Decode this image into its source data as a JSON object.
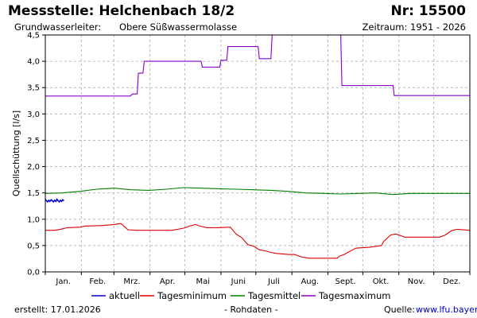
{
  "header": {
    "title": "Messstelle: Helchenbach 18/2",
    "number": "Nr: 15500",
    "aquifer_label": "Grundwasserleiter:",
    "aquifer_value": "Obere Süßwassermolasse",
    "period": "Zeitraum: 1951 - 2026"
  },
  "footer": {
    "created": "erstellt:  17.01.2026",
    "data_note": "- Rohdaten -",
    "source_label": "Quelle:",
    "source_link": "www.lfu.bayern.de"
  },
  "colors": {
    "aktuell": "#0000cc",
    "min": "#dd0000",
    "mittel": "#008000",
    "max": "#8800cc",
    "grid": "#bbbbbb"
  },
  "chart_data": {
    "type": "line",
    "ylabel": "Quellschüttung [l/s]",
    "ylim": [
      0,
      4.5
    ],
    "yticks": [
      "0,0",
      "0,5",
      "1,0",
      "1,5",
      "2,0",
      "2,5",
      "3,0",
      "3,5",
      "4,0",
      "4,5"
    ],
    "xlim": [
      1,
      366
    ],
    "x_month_labels": [
      "Jan.",
      "Feb.",
      "Mrz.",
      "Apr.",
      "Mai",
      "Juni",
      "Juli",
      "Aug.",
      "Sept.",
      "Okt.",
      "Nov.",
      "Dez."
    ],
    "grid": true,
    "legend_position": "bottom",
    "series": [
      {
        "name": "aktuell",
        "color_key": "aktuell",
        "points": [
          [
            1,
            1.38
          ],
          [
            2,
            1.35
          ],
          [
            3,
            1.33
          ],
          [
            4,
            1.36
          ],
          [
            5,
            1.34
          ],
          [
            6,
            1.37
          ],
          [
            7,
            1.35
          ],
          [
            8,
            1.33
          ],
          [
            9,
            1.36
          ],
          [
            10,
            1.34
          ],
          [
            11,
            1.38
          ],
          [
            12,
            1.35
          ],
          [
            13,
            1.33
          ],
          [
            14,
            1.36
          ],
          [
            15,
            1.34
          ],
          [
            16,
            1.37
          ],
          [
            17,
            1.35
          ]
        ]
      },
      {
        "name": "Tagesminimum",
        "color_key": "min",
        "points": [
          [
            1,
            0.79
          ],
          [
            9,
            0.79
          ],
          [
            14,
            0.81
          ],
          [
            20,
            0.84
          ],
          [
            31,
            0.85
          ],
          [
            35,
            0.87
          ],
          [
            50,
            0.88
          ],
          [
            60,
            0.9
          ],
          [
            66,
            0.92
          ],
          [
            68,
            0.88
          ],
          [
            72,
            0.8
          ],
          [
            80,
            0.79
          ],
          [
            95,
            0.79
          ],
          [
            110,
            0.79
          ],
          [
            120,
            0.83
          ],
          [
            125,
            0.87
          ],
          [
            130,
            0.9
          ],
          [
            134,
            0.87
          ],
          [
            140,
            0.84
          ],
          [
            150,
            0.84
          ],
          [
            160,
            0.85
          ],
          [
            165,
            0.72
          ],
          [
            170,
            0.65
          ],
          [
            175,
            0.52
          ],
          [
            180,
            0.49
          ],
          [
            185,
            0.42
          ],
          [
            190,
            0.4
          ],
          [
            195,
            0.37
          ],
          [
            200,
            0.35
          ],
          [
            210,
            0.33
          ],
          [
            215,
            0.33
          ],
          [
            222,
            0.28
          ],
          [
            228,
            0.26
          ],
          [
            240,
            0.26
          ],
          [
            252,
            0.26
          ],
          [
            254,
            0.3
          ],
          [
            258,
            0.33
          ],
          [
            262,
            0.38
          ],
          [
            268,
            0.45
          ],
          [
            280,
            0.47
          ],
          [
            290,
            0.5
          ],
          [
            292,
            0.58
          ],
          [
            298,
            0.7
          ],
          [
            302,
            0.72
          ],
          [
            305,
            0.7
          ],
          [
            310,
            0.66
          ],
          [
            320,
            0.66
          ],
          [
            330,
            0.66
          ],
          [
            340,
            0.66
          ],
          [
            345,
            0.7
          ],
          [
            350,
            0.78
          ],
          [
            355,
            0.81
          ],
          [
            366,
            0.79
          ]
        ]
      },
      {
        "name": "Tagesmittel",
        "color_key": "mittel",
        "points": [
          [
            1,
            1.49
          ],
          [
            15,
            1.5
          ],
          [
            31,
            1.53
          ],
          [
            45,
            1.57
          ],
          [
            60,
            1.59
          ],
          [
            75,
            1.56
          ],
          [
            90,
            1.55
          ],
          [
            105,
            1.57
          ],
          [
            120,
            1.6
          ],
          [
            135,
            1.59
          ],
          [
            150,
            1.58
          ],
          [
            165,
            1.57
          ],
          [
            180,
            1.56
          ],
          [
            195,
            1.55
          ],
          [
            210,
            1.53
          ],
          [
            225,
            1.5
          ],
          [
            240,
            1.49
          ],
          [
            255,
            1.48
          ],
          [
            270,
            1.49
          ],
          [
            285,
            1.5
          ],
          [
            300,
            1.47
          ],
          [
            315,
            1.49
          ],
          [
            330,
            1.49
          ],
          [
            345,
            1.49
          ],
          [
            366,
            1.49
          ]
        ]
      },
      {
        "name": "Tagesmaximum",
        "color_key": "max",
        "points": [
          [
            1,
            3.34
          ],
          [
            60,
            3.34
          ],
          [
            74,
            3.34
          ],
          [
            76,
            3.38
          ],
          [
            80,
            3.38
          ],
          [
            81,
            3.77
          ],
          [
            85,
            3.78
          ],
          [
            86,
            4.0
          ],
          [
            100,
            4.0
          ],
          [
            120,
            4.0
          ],
          [
            135,
            4.0
          ],
          [
            136,
            3.89
          ],
          [
            151,
            3.89
          ],
          [
            152,
            4.02
          ],
          [
            157,
            4.02
          ],
          [
            158,
            4.28
          ],
          [
            176,
            4.28
          ],
          [
            184,
            4.28
          ],
          [
            185,
            4.05
          ],
          [
            195,
            4.05
          ],
          [
            196,
            4.5
          ],
          [
            255,
            4.5
          ],
          [
            256,
            3.54
          ],
          [
            285,
            3.54
          ],
          [
            300,
            3.54
          ],
          [
            301,
            3.35
          ],
          [
            320,
            3.35
          ],
          [
            340,
            3.35
          ],
          [
            366,
            3.35
          ]
        ]
      }
    ]
  }
}
